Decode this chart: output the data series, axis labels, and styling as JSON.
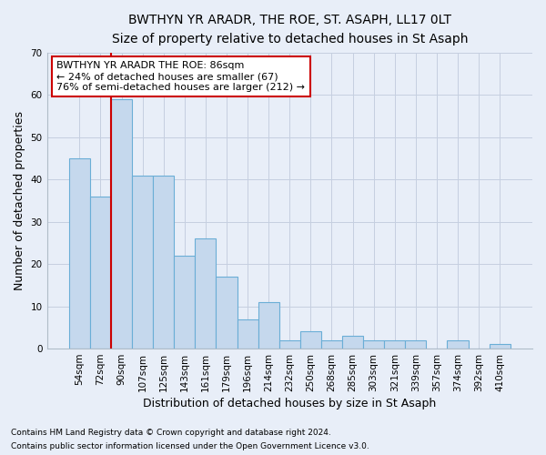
{
  "title": "BWTHYN YR ARADR, THE ROE, ST. ASAPH, LL17 0LT",
  "subtitle": "Size of property relative to detached houses in St Asaph",
  "xlabel": "Distribution of detached houses by size in St Asaph",
  "ylabel": "Number of detached properties",
  "bar_values": [
    45,
    36,
    59,
    41,
    41,
    22,
    26,
    17,
    7,
    11,
    2,
    4,
    2,
    3,
    2,
    2,
    2,
    0,
    2,
    0,
    1
  ],
  "bin_labels": [
    "54sqm",
    "72sqm",
    "90sqm",
    "107sqm",
    "125sqm",
    "143sqm",
    "161sqm",
    "179sqm",
    "196sqm",
    "214sqm",
    "232sqm",
    "250sqm",
    "268sqm",
    "285sqm",
    "303sqm",
    "321sqm",
    "339sqm",
    "357sqm",
    "374sqm",
    "392sqm",
    "410sqm"
  ],
  "bar_color": "#c5d8ed",
  "bar_edge_color": "#6aaed6",
  "background_color": "#e8eef8",
  "red_line_index": 2,
  "annotation_text": "BWTHYN YR ARADR THE ROE: 86sqm\n← 24% of detached houses are smaller (67)\n76% of semi-detached houses are larger (212) →",
  "annotation_box_facecolor": "#ffffff",
  "annotation_box_edgecolor": "#cc0000",
  "ylim": [
    0,
    70
  ],
  "yticks": [
    0,
    10,
    20,
    30,
    40,
    50,
    60,
    70
  ],
  "footer_line1": "Contains HM Land Registry data © Crown copyright and database right 2024.",
  "footer_line2": "Contains public sector information licensed under the Open Government Licence v3.0."
}
